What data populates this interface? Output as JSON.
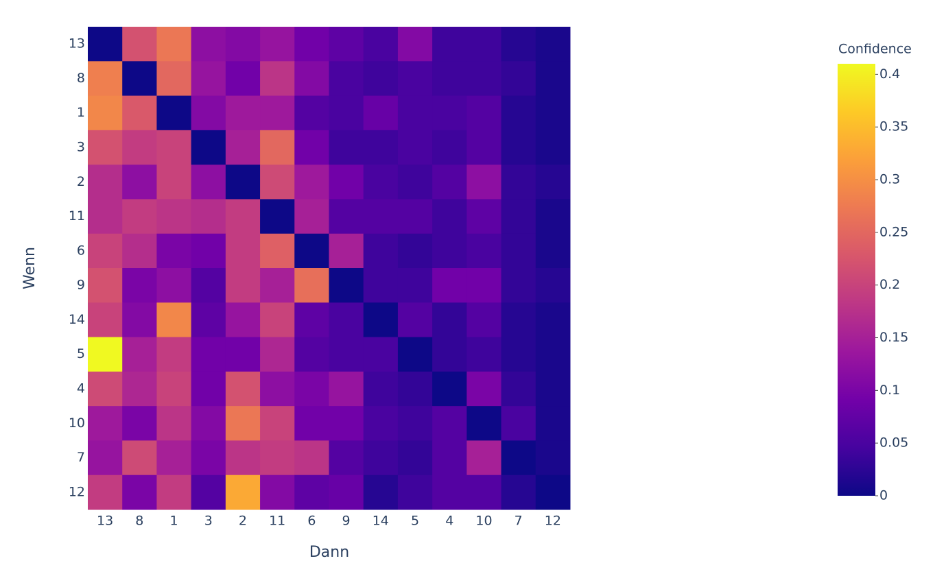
{
  "chart_data": {
    "type": "heatmap",
    "x_title": "Dann",
    "y_title": "Wenn",
    "colorbar_title": "Confidence",
    "x": [
      "13",
      "8",
      "1",
      "3",
      "2",
      "11",
      "6",
      "9",
      "14",
      "5",
      "4",
      "10",
      "7",
      "12"
    ],
    "y": [
      "13",
      "8",
      "1",
      "3",
      "2",
      "11",
      "6",
      "9",
      "14",
      "5",
      "4",
      "10",
      "7",
      "12"
    ],
    "z": [
      [
        0,
        0.22,
        0.27,
        0.12,
        0.11,
        0.13,
        0.09,
        0.07,
        0.05,
        0.11,
        0.04,
        0.04,
        0.02,
        0.01
      ],
      [
        0.28,
        0,
        0.25,
        0.13,
        0.09,
        0.18,
        0.11,
        0.05,
        0.04,
        0.05,
        0.04,
        0.04,
        0.03,
        0.01
      ],
      [
        0.29,
        0.23,
        0,
        0.11,
        0.14,
        0.14,
        0.06,
        0.05,
        0.08,
        0.05,
        0.05,
        0.06,
        0.02,
        0.01
      ],
      [
        0.22,
        0.19,
        0.2,
        0,
        0.15,
        0.25,
        0.09,
        0.04,
        0.04,
        0.05,
        0.04,
        0.06,
        0.02,
        0.01
      ],
      [
        0.17,
        0.12,
        0.2,
        0.12,
        0,
        0.21,
        0.14,
        0.09,
        0.05,
        0.04,
        0.06,
        0.12,
        0.03,
        0.02
      ],
      [
        0.17,
        0.19,
        0.18,
        0.17,
        0.19,
        0,
        0.15,
        0.06,
        0.06,
        0.06,
        0.04,
        0.07,
        0.03,
        0.01
      ],
      [
        0.2,
        0.17,
        0.1,
        0.09,
        0.19,
        0.24,
        0,
        0.15,
        0.04,
        0.03,
        0.04,
        0.05,
        0.03,
        0.01
      ],
      [
        0.22,
        0.1,
        0.12,
        0.06,
        0.19,
        0.15,
        0.26,
        0,
        0.04,
        0.04,
        0.09,
        0.09,
        0.03,
        0.02
      ],
      [
        0.2,
        0.11,
        0.29,
        0.07,
        0.13,
        0.2,
        0.07,
        0.05,
        0,
        0.06,
        0.03,
        0.06,
        0.02,
        0.01
      ],
      [
        0.41,
        0.15,
        0.19,
        0.09,
        0.09,
        0.16,
        0.06,
        0.05,
        0.05,
        0,
        0.03,
        0.04,
        0.02,
        0.01
      ],
      [
        0.21,
        0.16,
        0.2,
        0.09,
        0.22,
        0.12,
        0.1,
        0.13,
        0.04,
        0.03,
        0,
        0.1,
        0.03,
        0.01
      ],
      [
        0.14,
        0.1,
        0.18,
        0.11,
        0.27,
        0.2,
        0.09,
        0.09,
        0.05,
        0.04,
        0.06,
        0,
        0.05,
        0.01
      ],
      [
        0.13,
        0.21,
        0.15,
        0.1,
        0.18,
        0.19,
        0.18,
        0.06,
        0.04,
        0.03,
        0.06,
        0.15,
        0,
        0.01
      ],
      [
        0.19,
        0.1,
        0.19,
        0.06,
        0.33,
        0.11,
        0.07,
        0.08,
        0.02,
        0.04,
        0.06,
        0.06,
        0.02,
        0
      ]
    ],
    "zlim": [
      0,
      0.41
    ],
    "colorbar_ticks": [
      0,
      0.05,
      0.1,
      0.15,
      0.2,
      0.25,
      0.3,
      0.35,
      0.4
    ],
    "colorscale": [
      "#0d0887",
      "#46039f",
      "#7201a8",
      "#9c179e",
      "#bd3786",
      "#d8576b",
      "#ed7953",
      "#fb9f3a",
      "#fdca26",
      "#f0f921"
    ]
  }
}
